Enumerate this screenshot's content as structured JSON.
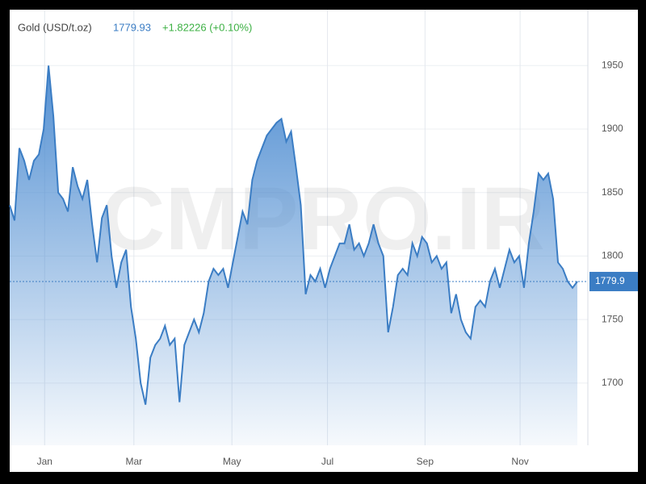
{
  "chart_data": {
    "type": "area",
    "title": "Gold (USD/t.oz)",
    "last_value": 1779.93,
    "last_label": "1779.9",
    "change": "+1.82226 (+0.10%)",
    "watermark": "CMPRO.IR",
    "color": "#3b7dc4",
    "grid": true,
    "xlim": [
      0,
      117
    ],
    "xticks": [
      {
        "value": 7.2,
        "label": "Jan"
      },
      {
        "value": 25.6,
        "label": "Mar"
      },
      {
        "value": 45.8,
        "label": "May"
      },
      {
        "value": 65.5,
        "label": "Jul"
      },
      {
        "value": 85.6,
        "label": "Sep"
      },
      {
        "value": 105.2,
        "label": "Nov"
      }
    ],
    "ylim": [
      1651,
      1994
    ],
    "yticks": [
      1700,
      1750,
      1800,
      1850,
      1900,
      1950
    ],
    "values": [
      1840,
      1828,
      1885,
      1875,
      1860,
      1875,
      1880,
      1900,
      1950,
      1910,
      1850,
      1845,
      1835,
      1870,
      1855,
      1845,
      1860,
      1825,
      1795,
      1830,
      1840,
      1800,
      1775,
      1795,
      1805,
      1760,
      1735,
      1700,
      1683,
      1720,
      1730,
      1735,
      1745,
      1730,
      1735,
      1685,
      1730,
      1740,
      1750,
      1740,
      1755,
      1780,
      1790,
      1785,
      1790,
      1775,
      1795,
      1815,
      1835,
      1825,
      1860,
      1875,
      1885,
      1895,
      1900,
      1905,
      1908,
      1890,
      1898,
      1870,
      1840,
      1770,
      1785,
      1780,
      1790,
      1775,
      1790,
      1800,
      1810,
      1810,
      1825,
      1805,
      1810,
      1800,
      1810,
      1825,
      1810,
      1800,
      1740,
      1760,
      1785,
      1790,
      1785,
      1810,
      1800,
      1815,
      1810,
      1795,
      1800,
      1790,
      1795,
      1755,
      1770,
      1750,
      1740,
      1735,
      1760,
      1765,
      1760,
      1780,
      1790,
      1775,
      1790,
      1805,
      1795,
      1800,
      1775,
      1810,
      1835,
      1865,
      1860,
      1865,
      1845,
      1795,
      1790,
      1780,
      1775,
      1780
    ]
  }
}
